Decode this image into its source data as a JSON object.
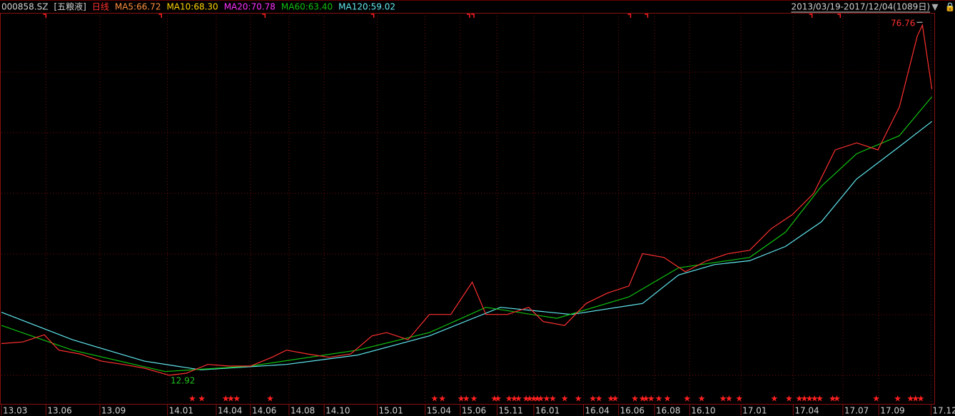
{
  "chart_data": {
    "type": "line",
    "code": "000858.SZ",
    "stock_name": "[五粮液]",
    "range_label": "2013/03/19-2017/12/04(1089日)",
    "indicators": [
      {
        "name": "MA5:66.72",
        "color": "#ff9040"
      },
      {
        "name": "MA10:68.30",
        "color": "#ffd200"
      },
      {
        "name": "MA20:70.78",
        "color": "#ff30ff"
      }
    ],
    "series": [
      {
        "name": "日线",
        "color": "#ff3030",
        "x": [
          0,
          25,
          50,
          67,
          92,
          117,
          142,
          167,
          196,
          216,
          241,
          266,
          291,
          316,
          333,
          358,
          383,
          408,
          433,
          450,
          475,
          500,
          525,
          550,
          566,
          591,
          616,
          633,
          658,
          683,
          708,
          733,
          749,
          774,
          799,
          824,
          849,
          874,
          899,
          924,
          949,
          974,
          999,
          1024,
          1049,
          1070,
          1076,
          1087
        ],
        "values": [
          18.7,
          19.0,
          20.3,
          17.5,
          16.8,
          15.5,
          14.9,
          14.2,
          12.92,
          13.3,
          14.9,
          14.6,
          14.6,
          16.2,
          17.5,
          16.8,
          16.2,
          16.8,
          20.1,
          20.7,
          19.4,
          24.0,
          24.0,
          29.9,
          24.0,
          24.0,
          25.3,
          22.7,
          22.0,
          26.0,
          27.9,
          29.2,
          35.1,
          34.4,
          31.8,
          33.8,
          35.1,
          35.7,
          39.6,
          42.2,
          46.1,
          54.0,
          55.3,
          54.0,
          61.8,
          74.8,
          76.76,
          65.1
        ]
      },
      {
        "name": "MA60:63.40",
        "color": "#10c010",
        "x": [
          0,
          83,
          191,
          291,
          416,
          500,
          566,
          649,
          733,
          791,
          874,
          916,
          958,
          999,
          1049,
          1087
        ],
        "values": [
          22.0,
          17.5,
          13.6,
          14.6,
          17.5,
          20.7,
          25.3,
          23.3,
          27.2,
          32.5,
          34.4,
          39.0,
          47.4,
          53.3,
          56.6,
          63.7
        ]
      },
      {
        "name": "MA120:59.02",
        "color": "#60e8f0",
        "x": [
          0,
          83,
          167,
          233,
          333,
          416,
          500,
          583,
          666,
          749,
          791,
          833,
          874,
          916,
          958,
          999,
          1049,
          1087
        ],
        "values": [
          24.4,
          19.4,
          15.5,
          13.9,
          14.9,
          16.6,
          20.1,
          25.3,
          24.0,
          26.0,
          31.2,
          33.1,
          33.8,
          36.4,
          40.9,
          48.7,
          54.6,
          59.2
        ]
      }
    ],
    "annotations": [
      {
        "text": "76.76",
        "x": 1076,
        "value": 76.76,
        "color": "#ff3030"
      },
      {
        "text": "12.92",
        "x": 196,
        "value": 12.92,
        "color": "#20c020"
      }
    ],
    "signals": [
      223,
      234,
      262,
      268,
      275,
      314,
      506,
      515,
      537,
      543,
      552,
      576,
      580,
      593,
      599,
      604,
      613,
      617,
      622,
      626,
      630,
      637,
      644,
      658,
      674,
      691,
      698,
      712,
      717,
      740,
      749,
      753,
      759,
      768,
      778,
      801,
      818,
      843,
      850,
      862,
      903,
      920,
      932,
      938,
      944,
      950,
      956,
      971,
      976,
      1022,
      1047,
      1062,
      1068,
      1074
    ],
    "top_markers": [
      52,
      187,
      308,
      435,
      547,
      552,
      735,
      755,
      947,
      980
    ],
    "xlim": [
      0,
      1089
    ],
    "ylim": [
      7.7,
      79
    ],
    "xticks": [
      {
        "value": 0,
        "label": "13.03"
      },
      {
        "value": 52,
        "label": "13.06"
      },
      {
        "value": 115,
        "label": "13.09"
      },
      {
        "value": 194,
        "label": "14.01"
      },
      {
        "value": 251,
        "label": "14.04"
      },
      {
        "value": 291,
        "label": "14.06"
      },
      {
        "value": 336,
        "label": "14.08"
      },
      {
        "value": 377,
        "label": "14.10"
      },
      {
        "value": 439,
        "label": "15.01"
      },
      {
        "value": 495,
        "label": "15.04"
      },
      {
        "value": 536,
        "label": "15.06"
      },
      {
        "value": 579,
        "label": "15.11"
      },
      {
        "value": 622,
        "label": "16.01"
      },
      {
        "value": 680,
        "label": "16.04"
      },
      {
        "value": 721,
        "label": "16.06"
      },
      {
        "value": 763,
        "label": "16.08"
      },
      {
        "value": 804,
        "label": "16.10"
      },
      {
        "value": 864,
        "label": "17.01"
      },
      {
        "value": 925,
        "label": "17.04"
      },
      {
        "value": 983,
        "label": "17.07"
      },
      {
        "value": 1025,
        "label": "17.09"
      },
      {
        "value": 1086,
        "label": "17.12"
      }
    ],
    "grid": true
  }
}
